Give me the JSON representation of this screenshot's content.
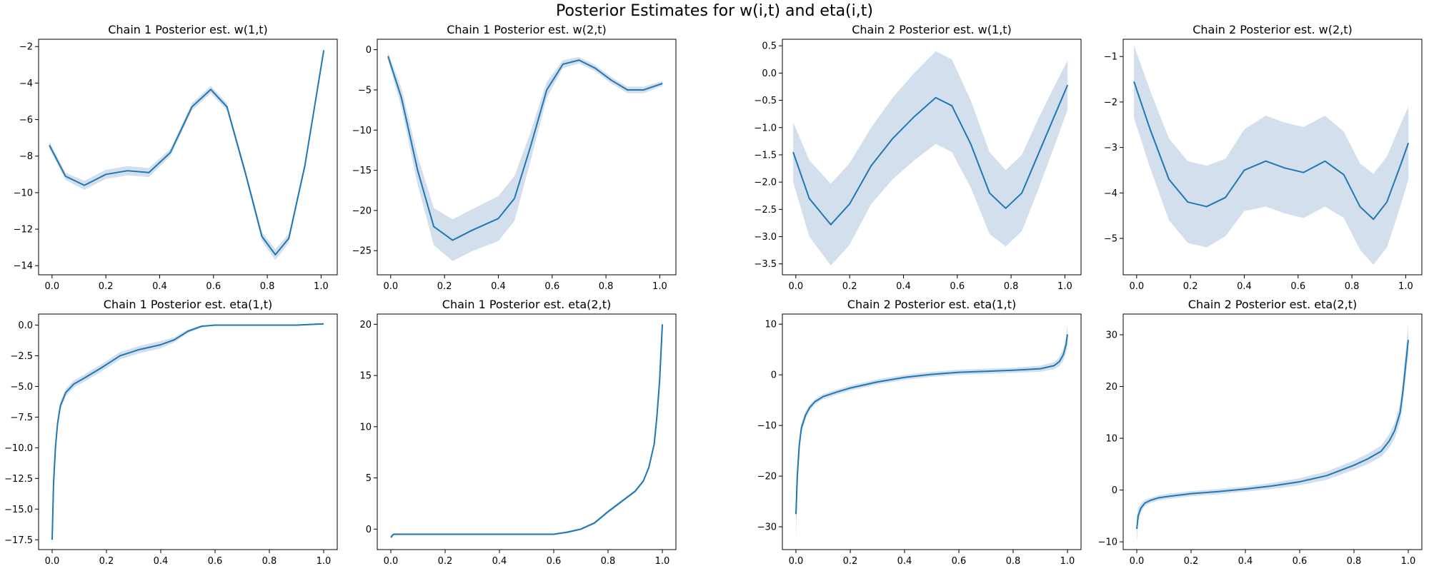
{
  "figure": {
    "title": "Posterior Estimates for w(i,t) and eta(i,t)"
  },
  "colors": {
    "line": "#1f77b4",
    "band": "#b0c4de",
    "axes": "#000000"
  },
  "chart_data": [
    {
      "type": "line",
      "title": "Chain 1 Posterior est. w(1,t)",
      "xlim": [
        -0.05,
        1.06
      ],
      "ylim": [
        -14.5,
        -1.6
      ],
      "xticks": [
        0.0,
        0.2,
        0.4,
        0.6,
        0.8,
        1.0
      ],
      "xticklabels": [
        "0.0",
        "0.2",
        "0.4",
        "0.6",
        "0.8",
        "1.0"
      ],
      "yticks": [
        -14,
        -12,
        -10,
        -8,
        -6,
        -4,
        -2
      ],
      "yticklabels": [
        "−14",
        "−12",
        "−10",
        "−8",
        "−6",
        "−4",
        "−2"
      ],
      "series": [
        {
          "x": [
            -0.01,
            0.05,
            0.12,
            0.2,
            0.28,
            0.36,
            0.44,
            0.52,
            0.59,
            0.65,
            0.72,
            0.78,
            0.83,
            0.88,
            0.94,
            1.01
          ],
          "y": [
            -7.4,
            -9.1,
            -9.6,
            -9.0,
            -8.8,
            -8.9,
            -7.8,
            -5.3,
            -4.35,
            -5.3,
            -9.0,
            -12.4,
            -13.4,
            -12.5,
            -8.5,
            -2.2
          ],
          "band": [
            0.2,
            0.2,
            0.25,
            0.25,
            0.25,
            0.25,
            0.2,
            0.2,
            0.2,
            0.2,
            0.2,
            0.25,
            0.3,
            0.25,
            0.2,
            0.1
          ]
        }
      ]
    },
    {
      "type": "line",
      "title": "Chain 1 Posterior est. w(2,t)",
      "xlim": [
        -0.05,
        1.06
      ],
      "ylim": [
        -28,
        1.3
      ],
      "xticks": [
        0.0,
        0.2,
        0.4,
        0.6,
        0.8,
        1.0
      ],
      "xticklabels": [
        "0.0",
        "0.2",
        "0.4",
        "0.6",
        "0.8",
        "1.0"
      ],
      "yticks": [
        -25,
        -20,
        -15,
        -10,
        -5,
        0
      ],
      "yticklabels": [
        "−25",
        "−20",
        "−15",
        "−10",
        "−5",
        "0"
      ],
      "series": [
        {
          "x": [
            -0.01,
            0.04,
            0.1,
            0.16,
            0.23,
            0.3,
            0.4,
            0.46,
            0.52,
            0.58,
            0.64,
            0.7,
            0.76,
            0.82,
            0.88,
            0.94,
            1.01
          ],
          "y": [
            -0.8,
            -6.0,
            -15.0,
            -22.0,
            -23.7,
            -22.5,
            -21.0,
            -18.5,
            -12.0,
            -5.0,
            -1.8,
            -1.3,
            -2.3,
            -3.8,
            -5.0,
            -5.0,
            -4.2
          ],
          "band": [
            0.5,
            1.2,
            1.8,
            2.3,
            2.6,
            2.6,
            2.8,
            2.8,
            1.8,
            1.0,
            0.5,
            0.4,
            0.4,
            0.4,
            0.4,
            0.4,
            0.3
          ]
        }
      ]
    },
    {
      "type": "line",
      "title": "Chain 2 Posterior est. w(1,t)",
      "xlim": [
        -0.05,
        1.06
      ],
      "ylim": [
        -3.7,
        0.62
      ],
      "xticks": [
        0.0,
        0.2,
        0.4,
        0.6,
        0.8,
        1.0
      ],
      "xticklabels": [
        "0.0",
        "0.2",
        "0.4",
        "0.6",
        "0.8",
        "1.0"
      ],
      "yticks": [
        -3.5,
        -3.0,
        -2.5,
        -2.0,
        -1.5,
        -1.0,
        -0.5,
        0.0,
        0.5
      ],
      "yticklabels": [
        "−3.5",
        "−3.0",
        "−2.5",
        "−2.0",
        "−1.5",
        "−1.0",
        "−0.5",
        "0.0",
        "0.5"
      ],
      "series": [
        {
          "x": [
            -0.01,
            0.05,
            0.13,
            0.2,
            0.28,
            0.36,
            0.44,
            0.52,
            0.58,
            0.65,
            0.72,
            0.78,
            0.84,
            0.9,
            0.96,
            1.01
          ],
          "y": [
            -1.45,
            -2.3,
            -2.78,
            -2.4,
            -1.7,
            -1.2,
            -0.8,
            -0.45,
            -0.6,
            -1.3,
            -2.2,
            -2.48,
            -2.2,
            -1.5,
            -0.8,
            -0.22
          ],
          "band": [
            0.55,
            0.7,
            0.75,
            0.75,
            0.7,
            0.75,
            0.8,
            0.85,
            0.85,
            0.8,
            0.75,
            0.7,
            0.7,
            0.65,
            0.55,
            0.45
          ]
        }
      ]
    },
    {
      "type": "line",
      "title": "Chain 2 Posterior est. w(2,t)",
      "xlim": [
        -0.05,
        1.06
      ],
      "ylim": [
        -5.8,
        -0.62
      ],
      "xticks": [
        0.0,
        0.2,
        0.4,
        0.6,
        0.8,
        1.0
      ],
      "xticklabels": [
        "0.0",
        "0.2",
        "0.4",
        "0.6",
        "0.8",
        "1.0"
      ],
      "yticks": [
        -5,
        -4,
        -3,
        -2,
        -1
      ],
      "yticklabels": [
        "−5",
        "−4",
        "−3",
        "−2",
        "−1"
      ],
      "series": [
        {
          "x": [
            -0.01,
            0.05,
            0.12,
            0.19,
            0.26,
            0.33,
            0.4,
            0.48,
            0.55,
            0.62,
            0.7,
            0.77,
            0.83,
            0.88,
            0.93,
            0.98,
            1.01
          ],
          "y": [
            -1.55,
            -2.6,
            -3.7,
            -4.2,
            -4.3,
            -4.1,
            -3.5,
            -3.3,
            -3.45,
            -3.55,
            -3.3,
            -3.6,
            -4.3,
            -4.58,
            -4.2,
            -3.4,
            -2.9
          ],
          "band": [
            0.8,
            0.85,
            0.9,
            0.9,
            0.9,
            0.85,
            0.9,
            1.0,
            1.0,
            1.0,
            1.0,
            0.95,
            0.95,
            1.0,
            1.0,
            0.9,
            0.8
          ]
        }
      ]
    },
    {
      "type": "line",
      "title": "Chain 1 Posterior est. eta(1,t)",
      "xlim": [
        -0.05,
        1.05
      ],
      "ylim": [
        -18.3,
        0.9
      ],
      "xticks": [
        0.0,
        0.2,
        0.4,
        0.6,
        0.8,
        1.0
      ],
      "xticklabels": [
        "0.0",
        "0.2",
        "0.4",
        "0.6",
        "0.8",
        "1.0"
      ],
      "yticks": [
        -17.5,
        -15.0,
        -12.5,
        -10.0,
        -7.5,
        -5.0,
        -2.5,
        0.0
      ],
      "yticklabels": [
        "−17.5",
        "−15.0",
        "−12.5",
        "−10.0",
        "−7.5",
        "−5.0",
        "−2.5",
        "0.0"
      ],
      "series": [
        {
          "x": [
            0.0,
            0.005,
            0.012,
            0.02,
            0.03,
            0.05,
            0.08,
            0.12,
            0.18,
            0.25,
            0.32,
            0.4,
            0.45,
            0.5,
            0.55,
            0.6,
            0.7,
            0.8,
            0.9,
            1.0
          ],
          "y": [
            -17.5,
            -13.0,
            -10.0,
            -8.0,
            -6.6,
            -5.5,
            -4.8,
            -4.3,
            -3.5,
            -2.5,
            -2.0,
            -1.6,
            -1.2,
            -0.5,
            -0.1,
            0.0,
            0.0,
            0.0,
            0.0,
            0.1
          ],
          "band": [
            0.4,
            0.4,
            0.35,
            0.35,
            0.35,
            0.3,
            0.3,
            0.3,
            0.3,
            0.3,
            0.3,
            0.3,
            0.2,
            0.15,
            0.1,
            0.05,
            0.05,
            0.05,
            0.05,
            0.05
          ]
        }
      ]
    },
    {
      "type": "line",
      "title": "Chain 1 Posterior est. eta(2,t)",
      "xlim": [
        -0.05,
        1.05
      ],
      "ylim": [
        -2.0,
        21.0
      ],
      "xticks": [
        0.0,
        0.2,
        0.4,
        0.6,
        0.8,
        1.0
      ],
      "xticklabels": [
        "0.0",
        "0.2",
        "0.4",
        "0.6",
        "0.8",
        "1.0"
      ],
      "yticks": [
        0,
        5,
        10,
        15,
        20
      ],
      "yticklabels": [
        "0",
        "5",
        "10",
        "15",
        "20"
      ],
      "series": [
        {
          "x": [
            0.0,
            0.01,
            0.05,
            0.2,
            0.4,
            0.6,
            0.65,
            0.7,
            0.75,
            0.8,
            0.85,
            0.9,
            0.93,
            0.95,
            0.97,
            0.98,
            0.99,
            1.0
          ],
          "y": [
            -0.8,
            -0.5,
            -0.5,
            -0.5,
            -0.5,
            -0.5,
            -0.3,
            0.0,
            0.6,
            1.7,
            2.7,
            3.7,
            4.7,
            6.0,
            8.3,
            11.0,
            14.5,
            20.0
          ],
          "band": [
            0.2,
            0.1,
            0.08,
            0.08,
            0.08,
            0.08,
            0.1,
            0.1,
            0.12,
            0.15,
            0.15,
            0.15,
            0.15,
            0.2,
            0.25,
            0.3,
            0.3,
            0.3
          ]
        }
      ]
    },
    {
      "type": "line",
      "title": "Chain 2 Posterior est. eta(1,t)",
      "xlim": [
        -0.05,
        1.05
      ],
      "ylim": [
        -34.5,
        12.0
      ],
      "xticks": [
        0.0,
        0.2,
        0.4,
        0.6,
        0.8,
        1.0
      ],
      "xticklabels": [
        "0.0",
        "0.2",
        "0.4",
        "0.6",
        "0.8",
        "1.0"
      ],
      "yticks": [
        -30,
        -20,
        -10,
        0,
        10
      ],
      "yticklabels": [
        "−30",
        "−20",
        "−10",
        "0",
        "10"
      ],
      "series": [
        {
          "x": [
            0.0,
            0.005,
            0.012,
            0.02,
            0.035,
            0.05,
            0.07,
            0.1,
            0.15,
            0.2,
            0.3,
            0.4,
            0.5,
            0.6,
            0.7,
            0.8,
            0.9,
            0.95,
            0.97,
            0.985,
            0.995,
            1.0
          ],
          "y": [
            -27.5,
            -20.0,
            -14.0,
            -10.5,
            -8.0,
            -6.5,
            -5.3,
            -4.3,
            -3.4,
            -2.6,
            -1.4,
            -0.5,
            0.1,
            0.5,
            0.7,
            0.9,
            1.2,
            1.8,
            2.6,
            4.0,
            6.0,
            8.0
          ],
          "band": [
            5.0,
            3.0,
            1.5,
            1.0,
            0.8,
            0.6,
            0.5,
            0.5,
            0.5,
            0.5,
            0.5,
            0.5,
            0.5,
            0.5,
            0.5,
            0.5,
            0.6,
            0.7,
            0.9,
            1.2,
            1.6,
            2.0
          ]
        }
      ]
    },
    {
      "type": "line",
      "title": "Chain 2 Posterior est. eta(2,t)",
      "xlim": [
        -0.05,
        1.05
      ],
      "ylim": [
        -11.5,
        34.0
      ],
      "xticks": [
        0.0,
        0.2,
        0.4,
        0.6,
        0.8,
        1.0
      ],
      "xticklabels": [
        "0.0",
        "0.2",
        "0.4",
        "0.6",
        "0.8",
        "1.0"
      ],
      "yticks": [
        -10,
        0,
        10,
        20,
        30
      ],
      "yticklabels": [
        "−10",
        "0",
        "10",
        "20",
        "30"
      ],
      "series": [
        {
          "x": [
            0.0,
            0.005,
            0.015,
            0.03,
            0.05,
            0.08,
            0.12,
            0.2,
            0.3,
            0.4,
            0.5,
            0.6,
            0.7,
            0.8,
            0.85,
            0.9,
            0.93,
            0.95,
            0.97,
            0.98,
            0.99,
            1.0
          ],
          "y": [
            -7.5,
            -5.0,
            -3.5,
            -2.5,
            -2.0,
            -1.5,
            -1.2,
            -0.7,
            -0.3,
            0.2,
            0.8,
            1.6,
            2.8,
            4.8,
            6.0,
            7.5,
            9.5,
            11.5,
            15.0,
            19.0,
            24.0,
            29.0
          ],
          "band": [
            2.5,
            1.5,
            0.9,
            0.6,
            0.5,
            0.5,
            0.5,
            0.5,
            0.5,
            0.5,
            0.6,
            0.7,
            0.8,
            0.9,
            1.0,
            1.1,
            1.3,
            1.5,
            1.8,
            2.2,
            2.6,
            3.0
          ]
        }
      ]
    }
  ]
}
